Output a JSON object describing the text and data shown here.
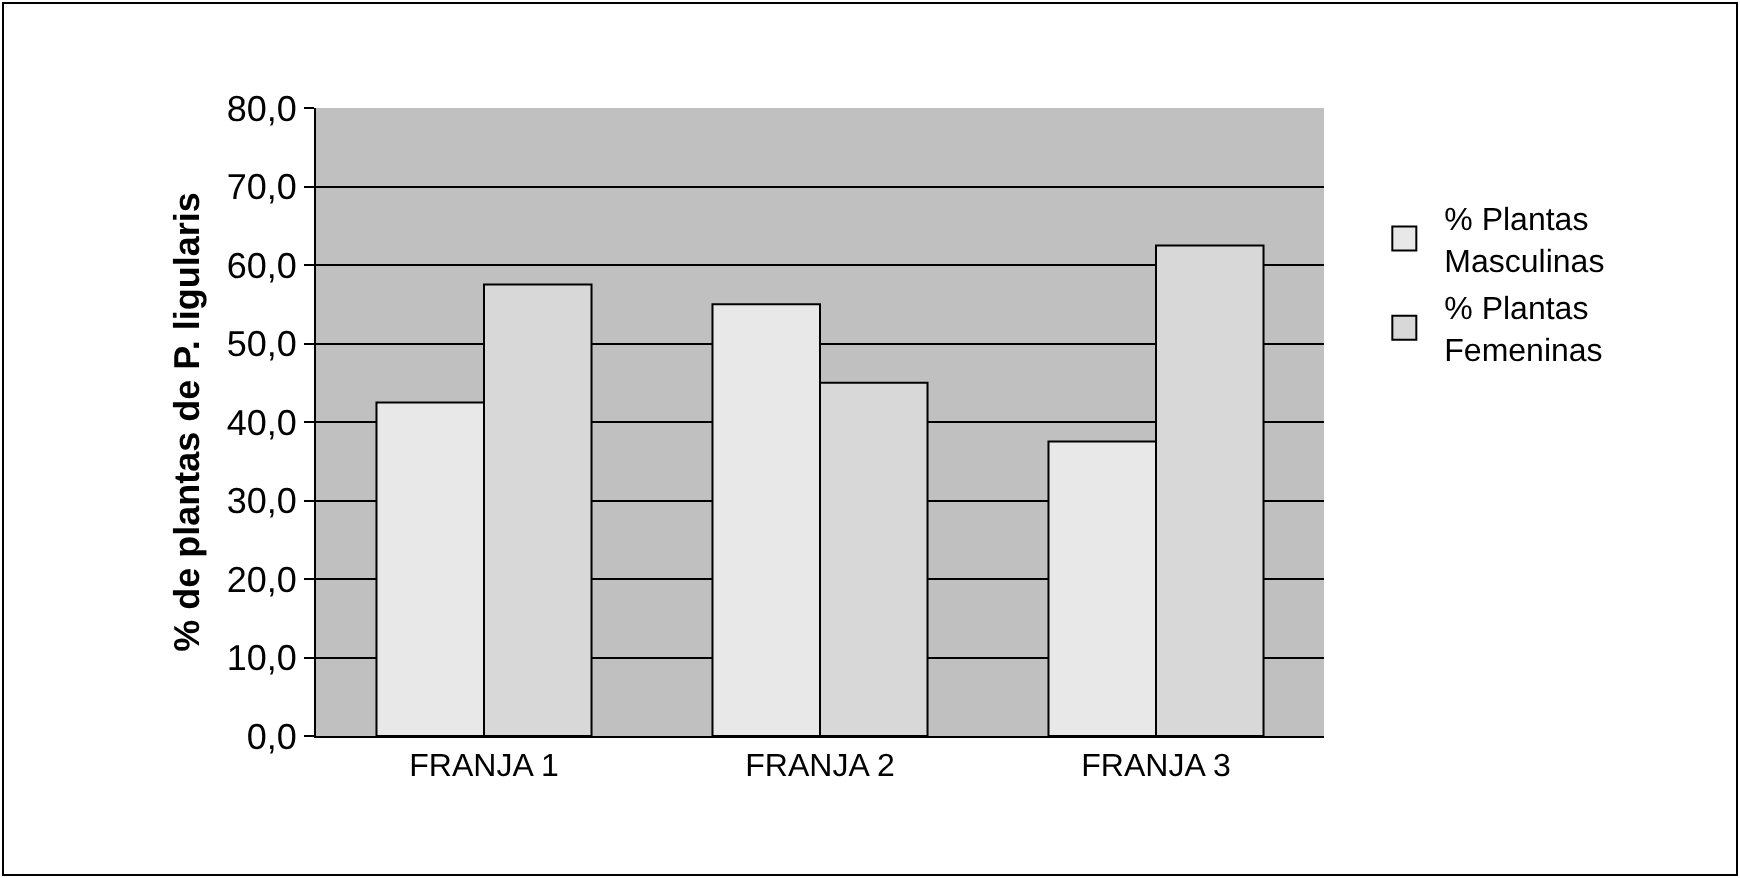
{
  "chart_data": {
    "type": "bar",
    "ylabel": "% de plantas de P. ligularis",
    "categories": [
      "FRANJA 1",
      "FRANJA 2",
      "FRANJA 3"
    ],
    "series": [
      {
        "name": "% Plantas Masculinas",
        "color": "#e8e8e8",
        "values": [
          42.5,
          55.0,
          37.5
        ]
      },
      {
        "name": "% Plantas Femeninas",
        "color": "#d8d8d8",
        "values": [
          57.5,
          45.0,
          62.5
        ]
      }
    ],
    "ylim": [
      0,
      80
    ],
    "yticks": [
      {
        "value": 0,
        "label": "0,0"
      },
      {
        "value": 10,
        "label": "10,0"
      },
      {
        "value": 20,
        "label": "20,0"
      },
      {
        "value": 30,
        "label": "30,0"
      },
      {
        "value": 40,
        "label": "40,0"
      },
      {
        "value": 50,
        "label": "50,0"
      },
      {
        "value": 60,
        "label": "60,0"
      },
      {
        "value": 70,
        "label": "70,0"
      },
      {
        "value": 80,
        "label": "80,0"
      }
    ],
    "grid": "y",
    "legend": "right"
  }
}
